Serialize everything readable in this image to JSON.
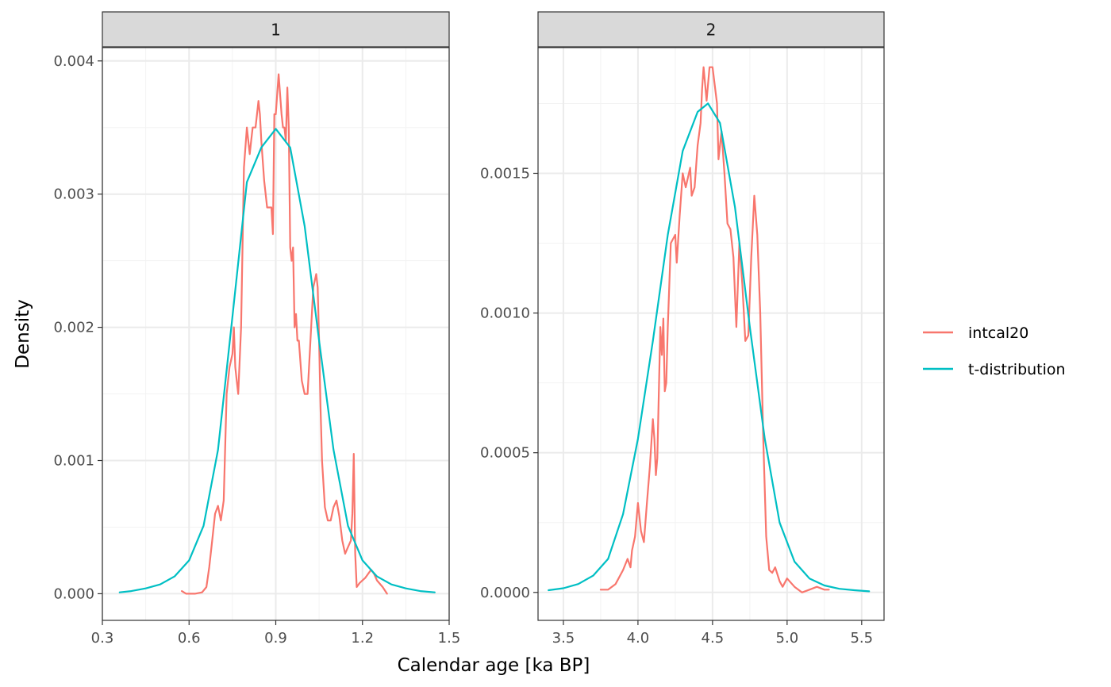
{
  "chart_data": {
    "type": "line",
    "xlabel": "Calendar age [ka BP]",
    "ylabel": "Density",
    "legend": {
      "position": "right",
      "entries": [
        {
          "name": "intcal20",
          "color": "#F8766D"
        },
        {
          "name": "t-distribution",
          "color": "#00BFC4"
        }
      ]
    },
    "grid": true,
    "panels": [
      {
        "strip": "1",
        "xlim": [
          0.3,
          1.5
        ],
        "ylim": [
          -0.0002,
          0.0041
        ],
        "xticks": [
          {
            "value": 0.3,
            "label": "0.3"
          },
          {
            "value": 0.6,
            "label": "0.6"
          },
          {
            "value": 0.9,
            "label": "0.9"
          },
          {
            "value": 1.2,
            "label": "1.2"
          },
          {
            "value": 1.5,
            "label": "1.5"
          }
        ],
        "yticks": [
          {
            "value": 0.0,
            "label": "0.000"
          },
          {
            "value": 0.001,
            "label": "0.001"
          },
          {
            "value": 0.002,
            "label": "0.002"
          },
          {
            "value": 0.003,
            "label": "0.003"
          },
          {
            "value": 0.004,
            "label": "0.004"
          }
        ],
        "series": [
          {
            "name": "intcal20",
            "x": [
              0.575,
              0.59,
              0.62,
              0.645,
              0.66,
              0.67,
              0.68,
              0.69,
              0.7,
              0.71,
              0.72,
              0.73,
              0.74,
              0.75,
              0.755,
              0.76,
              0.765,
              0.77,
              0.78,
              0.79,
              0.8,
              0.81,
              0.815,
              0.82,
              0.83,
              0.84,
              0.845,
              0.85,
              0.86,
              0.87,
              0.875,
              0.88,
              0.885,
              0.89,
              0.895,
              0.9,
              0.91,
              0.92,
              0.925,
              0.93,
              0.935,
              0.94,
              0.945,
              0.95,
              0.955,
              0.96,
              0.965,
              0.97,
              0.975,
              0.98,
              0.99,
              1.0,
              1.01,
              1.02,
              1.03,
              1.04,
              1.045,
              1.05,
              1.055,
              1.06,
              1.07,
              1.08,
              1.09,
              1.1,
              1.11,
              1.12,
              1.13,
              1.14,
              1.15,
              1.16,
              1.165,
              1.17,
              1.175,
              1.18,
              1.19,
              1.2,
              1.21,
              1.22,
              1.23,
              1.24,
              1.25,
              1.27,
              1.285
            ],
            "y": [
              2e-05,
              0.0,
              0.0,
              1e-05,
              5e-05,
              0.0002,
              0.0004,
              0.0006,
              0.00066,
              0.00055,
              0.0007,
              0.0015,
              0.0017,
              0.0018,
              0.002,
              0.0017,
              0.0016,
              0.0015,
              0.002,
              0.0032,
              0.0035,
              0.0033,
              0.0034,
              0.0035,
              0.0035,
              0.0037,
              0.0036,
              0.0034,
              0.0031,
              0.0029,
              0.0029,
              0.0029,
              0.0029,
              0.0027,
              0.0036,
              0.0036,
              0.0039,
              0.0036,
              0.0035,
              0.0035,
              0.0034,
              0.0038,
              0.0035,
              0.0026,
              0.0025,
              0.0026,
              0.002,
              0.0021,
              0.0019,
              0.0019,
              0.0016,
              0.0015,
              0.0015,
              0.0019,
              0.0023,
              0.0024,
              0.0023,
              0.0019,
              0.0014,
              0.001,
              0.00065,
              0.00055,
              0.00055,
              0.00065,
              0.0007,
              0.00058,
              0.0004,
              0.0003,
              0.00035,
              0.0004,
              0.0006,
              0.00105,
              0.0003,
              5e-05,
              8e-05,
              0.0001,
              0.00012,
              0.00015,
              0.00018,
              0.00015,
              0.0001,
              5e-05,
              0.0
            ]
          },
          {
            "name": "t-distribution",
            "x": [
              0.36,
              0.4,
              0.45,
              0.5,
              0.55,
              0.6,
              0.65,
              0.7,
              0.75,
              0.8,
              0.85,
              0.9,
              0.95,
              1.0,
              1.05,
              1.1,
              1.15,
              1.2,
              1.25,
              1.3,
              1.35,
              1.4,
              1.45
            ],
            "y": [
              1e-05,
              2e-05,
              4e-05,
              7e-05,
              0.00013,
              0.00025,
              0.00051,
              0.00108,
              0.00208,
              0.00309,
              0.00335,
              0.00349,
              0.00335,
              0.00276,
              0.0019,
              0.00108,
              0.00051,
              0.00025,
              0.00013,
              7e-05,
              4e-05,
              2e-05,
              1e-05
            ]
          }
        ]
      },
      {
        "strip": "2",
        "xlim": [
          3.33,
          5.65
        ],
        "ylim": [
          -0.0001,
          0.00195
        ],
        "xticks": [
          {
            "value": 3.5,
            "label": "3.5"
          },
          {
            "value": 4.0,
            "label": "4.0"
          },
          {
            "value": 4.5,
            "label": "4.5"
          },
          {
            "value": 5.0,
            "label": "5.0"
          },
          {
            "value": 5.5,
            "label": "5.5"
          }
        ],
        "yticks": [
          {
            "value": 0.0,
            "label": "0.0000"
          },
          {
            "value": 0.0005,
            "label": "0.0005"
          },
          {
            "value": 0.001,
            "label": "0.0010"
          },
          {
            "value": 0.0015,
            "label": "0.0015"
          }
        ],
        "series": [
          {
            "name": "intcal20",
            "x": [
              3.75,
              3.8,
              3.85,
              3.9,
              3.93,
              3.95,
              3.96,
              3.98,
              4.0,
              4.02,
              4.04,
              4.06,
              4.08,
              4.1,
              4.11,
              4.12,
              4.13,
              4.15,
              4.16,
              4.17,
              4.18,
              4.19,
              4.2,
              4.22,
              4.25,
              4.26,
              4.28,
              4.3,
              4.32,
              4.35,
              4.36,
              4.38,
              4.4,
              4.42,
              4.43,
              4.44,
              4.46,
              4.48,
              4.5,
              4.53,
              4.54,
              4.56,
              4.58,
              4.6,
              4.62,
              4.64,
              4.66,
              4.68,
              4.7,
              4.72,
              4.74,
              4.76,
              4.78,
              4.8,
              4.82,
              4.84,
              4.86,
              4.88,
              4.9,
              4.92,
              4.95,
              4.97,
              5.0,
              5.05,
              5.1,
              5.15,
              5.2,
              5.25,
              5.28
            ],
            "y": [
              1e-05,
              1e-05,
              3e-05,
              8e-05,
              0.00012,
              9e-05,
              0.00015,
              0.0002,
              0.00032,
              0.00022,
              0.00018,
              0.00032,
              0.00045,
              0.00062,
              0.00055,
              0.00042,
              0.00048,
              0.00095,
              0.00085,
              0.00098,
              0.00072,
              0.00075,
              0.00095,
              0.00125,
              0.00128,
              0.00118,
              0.00135,
              0.0015,
              0.00145,
              0.00152,
              0.00142,
              0.00145,
              0.0016,
              0.00168,
              0.0018,
              0.00188,
              0.00176,
              0.00188,
              0.00188,
              0.00175,
              0.00155,
              0.00165,
              0.0015,
              0.00132,
              0.0013,
              0.0012,
              0.00095,
              0.00125,
              0.0011,
              0.0009,
              0.00092,
              0.0012,
              0.00142,
              0.00128,
              0.001,
              0.00055,
              0.0002,
              8e-05,
              7e-05,
              9e-05,
              4e-05,
              2e-05,
              5e-05,
              2e-05,
              0.0,
              1e-05,
              2e-05,
              1e-05,
              1e-05
            ]
          },
          {
            "name": "t-distribution",
            "x": [
              3.4,
              3.5,
              3.6,
              3.7,
              3.8,
              3.9,
              4.0,
              4.1,
              4.2,
              4.3,
              4.4,
              4.47,
              4.55,
              4.65,
              4.75,
              4.85,
              4.95,
              5.05,
              5.15,
              5.25,
              5.35,
              5.45,
              5.55
            ],
            "y": [
              8e-06,
              1.5e-05,
              3e-05,
              6e-05,
              0.00012,
              0.00028,
              0.00055,
              0.0009,
              0.00128,
              0.00158,
              0.00172,
              0.00175,
              0.00168,
              0.00138,
              0.00095,
              0.00055,
              0.00025,
              0.00011,
              5e-05,
              2.5e-05,
              1.3e-05,
              8e-06,
              4e-06
            ]
          }
        ]
      }
    ]
  }
}
